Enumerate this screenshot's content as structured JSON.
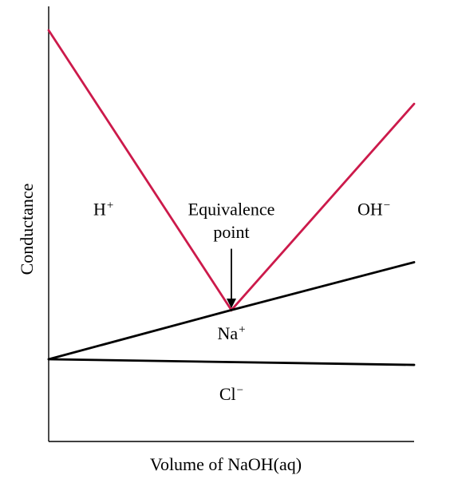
{
  "chart_data": {
    "type": "line",
    "title": "",
    "xlabel": "Volume of NaOH(aq)",
    "ylabel": "Conductance",
    "grid": false,
    "legend": "none",
    "xlim": [
      0,
      1
    ],
    "ylim": [
      0,
      1
    ],
    "series": [
      {
        "key": "total",
        "x": [
          0,
          0.5,
          1
        ],
        "y": [
          0.945,
          0.302,
          0.776
        ],
        "color": "#cc1a4b"
      },
      {
        "key": "na",
        "x": [
          0,
          0.5,
          1
        ],
        "y": [
          0.189,
          0.302,
          0.412
        ],
        "color": "#000000"
      },
      {
        "key": "cl",
        "x": [
          0,
          1
        ],
        "y": [
          0.189,
          0.176
        ],
        "color": "#000000"
      }
    ],
    "annotations": [
      {
        "key": "h-label",
        "base": "H",
        "superscript": "+",
        "x": 0.15,
        "y": 0.52,
        "color": "#cc1a4b"
      },
      {
        "key": "oh-label",
        "base": "OH",
        "superscript": "−",
        "x": 0.89,
        "y": 0.52,
        "color": "#2e4fa3"
      },
      {
        "key": "na-label",
        "base": "Na",
        "superscript": "+",
        "x": 0.5,
        "y": 0.235,
        "color": "#7a2f2b"
      },
      {
        "key": "cl-label",
        "base": "Cl",
        "superscript": "−",
        "x": 0.5,
        "y": 0.095,
        "color": "#1f9a3b"
      },
      {
        "key": "equivalence-line-1",
        "text": "Equivalence",
        "x": 0.5,
        "y": 0.52,
        "color": "#000000"
      },
      {
        "key": "equivalence-line-2",
        "text": "point",
        "x": 0.5,
        "y": 0.468,
        "color": "#000000"
      }
    ],
    "arrow": {
      "from": [
        0.5,
        0.443
      ],
      "to": [
        0.5,
        0.31
      ],
      "color": "#000000"
    }
  }
}
